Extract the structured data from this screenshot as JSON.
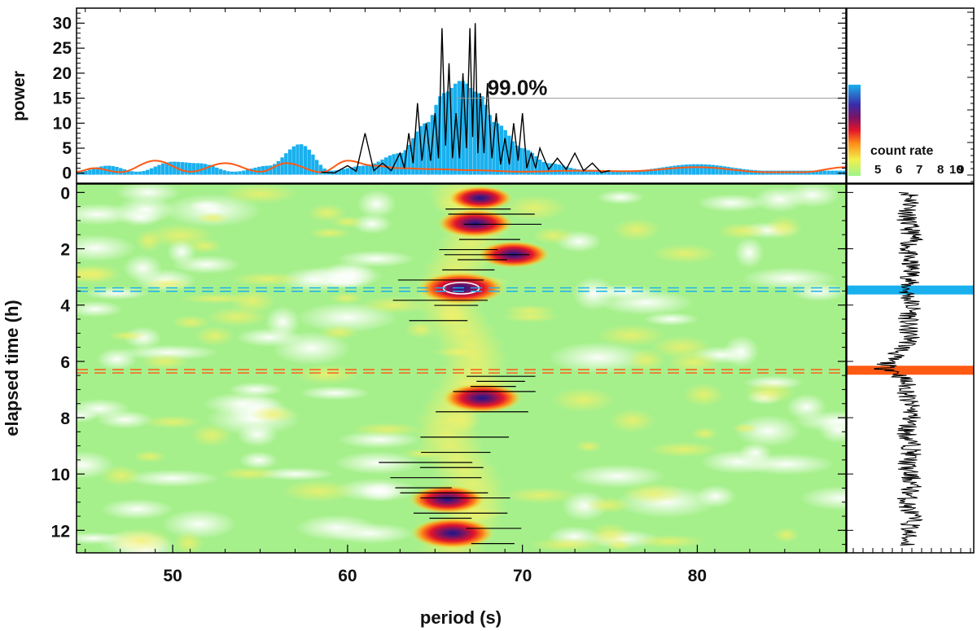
{
  "chart_data": [
    {
      "type": "area",
      "panel": "power-spectrum",
      "ylabel": "power",
      "xlim": [
        44.5,
        88.5
      ],
      "ylim": [
        -2,
        33
      ],
      "yticks": [
        "0",
        "5",
        "10",
        "15",
        "20",
        "25",
        "30"
      ],
      "significance_label": "99.0%",
      "significance_level": 15,
      "series": [
        {
          "color": "#1ab0ee",
          "x": [
            44.5,
            46.3,
            48.0,
            50.0,
            51.5,
            53.5,
            55.5,
            57.3,
            59.0,
            61.0,
            63.0,
            64.5,
            65.5,
            66.5,
            67.5,
            68.5,
            70.0,
            71.5,
            73.5,
            76.0,
            80.0,
            84.0,
            88.5
          ],
          "values": [
            0.2,
            1.5,
            0.3,
            2.3,
            2.0,
            0.3,
            1.5,
            5.8,
            0.5,
            1.5,
            4.0,
            10.0,
            16.0,
            18.5,
            16.0,
            10.0,
            5.0,
            2.0,
            0.7,
            0.5,
            1.8,
            0.5,
            0.5
          ]
        },
        {
          "color": "#ff5a14",
          "x": [
            44.5,
            45.5,
            47.0,
            49.0,
            51.0,
            53.0,
            55.0,
            56.5,
            58.5,
            60.0,
            61.5,
            63.0,
            65.0,
            67.0,
            70.0,
            73.0,
            76.0,
            80.0,
            84.0,
            86.0,
            88.5
          ],
          "values": [
            0.3,
            1.0,
            0.2,
            2.5,
            0.3,
            2.0,
            0.3,
            2.0,
            0.2,
            2.5,
            1.5,
            1.0,
            0.8,
            0.6,
            0.3,
            0.5,
            0.4,
            1.2,
            0.2,
            0.2,
            1.2
          ]
        },
        {
          "color": "#000000",
          "x": [
            58.5,
            60.0,
            61.0,
            62.0,
            63.0,
            63.5,
            64.0,
            64.5,
            65.0,
            65.4,
            65.8,
            66.2,
            66.6,
            67.0,
            67.3,
            67.6,
            68.0,
            68.5,
            69.0,
            69.5,
            70.0,
            70.5,
            71.0,
            72.0,
            73.0,
            74.0,
            75.0
          ],
          "values": [
            0.2,
            1.5,
            8.0,
            2.0,
            4.0,
            8.0,
            14.0,
            10.0,
            12.0,
            29.0,
            22.0,
            12.0,
            20.0,
            29.0,
            30.0,
            16.0,
            18.0,
            12.0,
            7.0,
            10.0,
            12.0,
            4.0,
            5.0,
            3.0,
            4.0,
            2.0,
            0.5
          ]
        }
      ]
    },
    {
      "type": "heatmap",
      "panel": "wavelet-map",
      "xlabel": "period (s)",
      "ylabel": "elapsed time (h)",
      "xlim": [
        44.5,
        88.5
      ],
      "ylim": [
        12.8,
        -0.3
      ],
      "xticks": [
        "50",
        "60",
        "70",
        "80"
      ],
      "yticks": [
        "0",
        "2",
        "4",
        "6",
        "8",
        "10",
        "12"
      ],
      "hotspots": [
        {
          "period": 67.6,
          "time": 0.2,
          "strength": 0.7
        },
        {
          "period": 67.3,
          "time": 1.1,
          "strength": 0.85
        },
        {
          "period": 69.5,
          "time": 2.2,
          "strength": 0.8
        },
        {
          "period": 66.5,
          "time": 3.4,
          "strength": 1.0
        },
        {
          "period": 67.7,
          "time": 7.3,
          "strength": 0.9
        },
        {
          "period": 65.7,
          "time": 10.9,
          "strength": 0.85
        },
        {
          "period": 66.0,
          "time": 12.1,
          "strength": 0.95
        }
      ],
      "marker_lines": [
        {
          "time": 3.45,
          "color": "#1ab0ee"
        },
        {
          "time": 6.35,
          "color": "#ff5a14"
        }
      ]
    },
    {
      "type": "line",
      "panel": "light-curve",
      "xlabel": "count rate",
      "ylim": [
        12.8,
        -0.3
      ],
      "highlight_times": [
        {
          "time": 3.45,
          "color": "#1ab0ee"
        },
        {
          "time": 6.3,
          "color": "#ff5a14"
        }
      ]
    },
    {
      "type": "colorbar",
      "label": "count rate",
      "ticks": [
        "5",
        "6",
        "7",
        "8",
        "9",
        "10"
      ]
    }
  ]
}
